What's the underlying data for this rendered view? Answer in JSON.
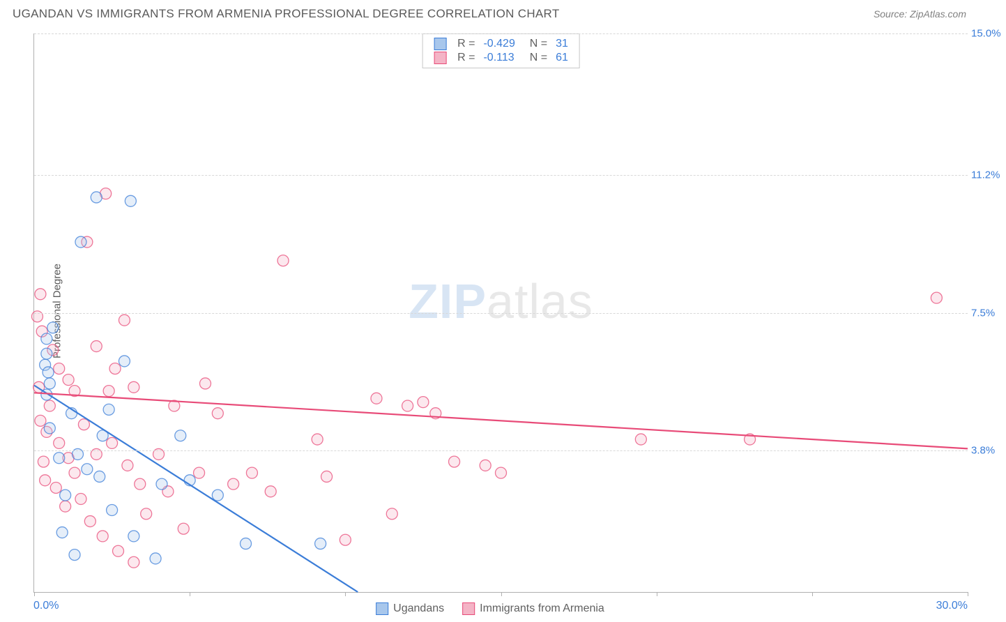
{
  "title": "UGANDAN VS IMMIGRANTS FROM ARMENIA PROFESSIONAL DEGREE CORRELATION CHART",
  "source": "Source: ZipAtlas.com",
  "watermark": {
    "zip": "ZIP",
    "atlas": "atlas"
  },
  "ylabel": "Professional Degree",
  "chart": {
    "type": "scatter-with-regression",
    "xlim": [
      0,
      30
    ],
    "ylim": [
      0,
      15
    ],
    "x_axis_labels": {
      "min": "0.0%",
      "max": "30.0%"
    },
    "y_ticks": [
      {
        "value": 3.8,
        "label": "3.8%"
      },
      {
        "value": 7.5,
        "label": "7.5%"
      },
      {
        "value": 11.2,
        "label": "11.2%"
      },
      {
        "value": 15.0,
        "label": "15.0%"
      }
    ],
    "x_tick_positions": [
      0,
      5,
      10,
      15,
      20,
      25,
      30
    ],
    "grid_color": "#d8d8d8",
    "axis_color": "#b0b0b0",
    "background_color": "#ffffff",
    "marker_radius": 8,
    "marker_fill_opacity": 0.3,
    "marker_stroke_width": 1.3,
    "line_width": 2.2
  },
  "series": [
    {
      "name": "Ugandans",
      "color_stroke": "#3b7dd8",
      "color_fill": "#a8c7ec",
      "R": "-0.429",
      "N": "31",
      "regression": {
        "x1": 0,
        "y1": 5.55,
        "x2": 10.4,
        "y2": 0
      },
      "points": [
        [
          2.0,
          10.6
        ],
        [
          3.1,
          10.5
        ],
        [
          0.4,
          6.8
        ],
        [
          0.4,
          6.4
        ],
        [
          0.35,
          6.1
        ],
        [
          0.45,
          5.9
        ],
        [
          0.5,
          5.6
        ],
        [
          0.4,
          5.3
        ],
        [
          1.2,
          4.8
        ],
        [
          2.9,
          6.2
        ],
        [
          0.6,
          7.1
        ],
        [
          1.5,
          9.4
        ],
        [
          0.5,
          4.4
        ],
        [
          2.4,
          4.9
        ],
        [
          2.2,
          4.2
        ],
        [
          0.8,
          3.6
        ],
        [
          1.4,
          3.7
        ],
        [
          1.7,
          3.3
        ],
        [
          2.1,
          3.1
        ],
        [
          1.0,
          2.6
        ],
        [
          4.1,
          2.9
        ],
        [
          5.0,
          3.0
        ],
        [
          6.8,
          1.3
        ],
        [
          5.9,
          2.6
        ],
        [
          3.2,
          1.5
        ],
        [
          3.9,
          0.9
        ],
        [
          9.2,
          1.3
        ],
        [
          2.5,
          2.2
        ],
        [
          0.9,
          1.6
        ],
        [
          1.3,
          1.0
        ],
        [
          4.7,
          4.2
        ]
      ]
    },
    {
      "name": "Immigrants from Armenia",
      "color_stroke": "#e84b78",
      "color_fill": "#f4b4c6",
      "R": "-0.113",
      "N": "61",
      "regression": {
        "x1": 0,
        "y1": 5.35,
        "x2": 30,
        "y2": 3.85
      },
      "points": [
        [
          2.3,
          10.7
        ],
        [
          1.7,
          9.4
        ],
        [
          0.2,
          8.0
        ],
        [
          0.1,
          7.4
        ],
        [
          0.25,
          7.0
        ],
        [
          0.8,
          6.0
        ],
        [
          1.1,
          5.7
        ],
        [
          1.3,
          5.4
        ],
        [
          2.4,
          5.4
        ],
        [
          2.9,
          7.3
        ],
        [
          3.2,
          5.5
        ],
        [
          0.5,
          5.0
        ],
        [
          0.2,
          4.6
        ],
        [
          0.4,
          4.3
        ],
        [
          0.8,
          4.0
        ],
        [
          1.1,
          3.6
        ],
        [
          1.3,
          3.2
        ],
        [
          2.0,
          3.7
        ],
        [
          2.5,
          4.0
        ],
        [
          3.0,
          3.4
        ],
        [
          3.4,
          2.9
        ],
        [
          4.0,
          3.7
        ],
        [
          4.3,
          2.7
        ],
        [
          5.3,
          3.2
        ],
        [
          5.9,
          4.8
        ],
        [
          6.4,
          2.9
        ],
        [
          7.0,
          3.2
        ],
        [
          7.6,
          2.7
        ],
        [
          8.0,
          8.9
        ],
        [
          9.1,
          4.1
        ],
        [
          9.4,
          3.1
        ],
        [
          10.0,
          1.4
        ],
        [
          11.0,
          5.2
        ],
        [
          11.5,
          2.1
        ],
        [
          12.0,
          5.0
        ],
        [
          12.5,
          5.1
        ],
        [
          12.9,
          4.8
        ],
        [
          13.5,
          3.5
        ],
        [
          14.5,
          3.4
        ],
        [
          15.0,
          3.2
        ],
        [
          19.5,
          4.1
        ],
        [
          23.0,
          4.1
        ],
        [
          0.3,
          3.5
        ],
        [
          0.7,
          2.8
        ],
        [
          1.0,
          2.3
        ],
        [
          1.5,
          2.5
        ],
        [
          1.8,
          1.9
        ],
        [
          2.2,
          1.5
        ],
        [
          2.7,
          1.1
        ],
        [
          3.2,
          0.8
        ],
        [
          3.6,
          2.1
        ],
        [
          4.8,
          1.7
        ],
        [
          5.5,
          5.6
        ],
        [
          0.15,
          5.5
        ],
        [
          0.6,
          6.5
        ],
        [
          2.0,
          6.6
        ],
        [
          2.6,
          6.0
        ],
        [
          29.0,
          7.9
        ],
        [
          0.35,
          3.0
        ],
        [
          1.6,
          4.5
        ],
        [
          4.5,
          5.0
        ]
      ]
    }
  ],
  "legend_bottom": [
    {
      "label": "Ugandans",
      "series": 0
    },
    {
      "label": "Immigrants from Armenia",
      "series": 1
    }
  ]
}
